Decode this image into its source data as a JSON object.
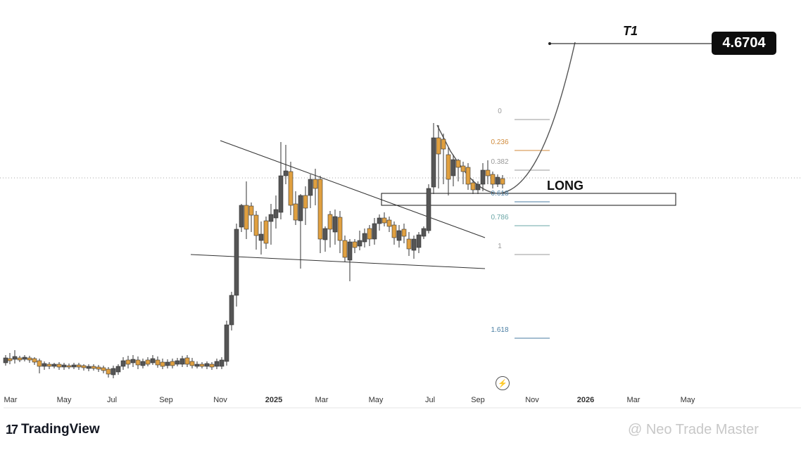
{
  "chart_data": {
    "type": "candlestick",
    "x_ticks": [
      {
        "label": "Mar",
        "bold": false
      },
      {
        "label": "May",
        "bold": false
      },
      {
        "label": "Jul",
        "bold": false
      },
      {
        "label": "Sep",
        "bold": false
      },
      {
        "label": "Nov",
        "bold": false
      },
      {
        "label": "2025",
        "bold": true
      },
      {
        "label": "Mar",
        "bold": false
      },
      {
        "label": "May",
        "bold": false
      },
      {
        "label": "Jul",
        "bold": false
      },
      {
        "label": "Sep",
        "bold": false
      },
      {
        "label": "Nov",
        "bold": false
      },
      {
        "label": "2026",
        "bold": true
      },
      {
        "label": "Mar",
        "bold": false
      },
      {
        "label": "May",
        "bold": false
      }
    ],
    "fib_levels": [
      {
        "label": "0",
        "color": "#999999"
      },
      {
        "label": "0.236",
        "color": "#d08a3a"
      },
      {
        "label": "0.382",
        "color": "#999999"
      },
      {
        "label": "0.618",
        "color": "#4a7ea3"
      },
      {
        "label": "0.786",
        "color": "#6aa6a6"
      },
      {
        "label": "1",
        "color": "#999999"
      },
      {
        "label": "1.618",
        "color": "#4a7ea3"
      }
    ],
    "annotations": {
      "target_label": "T1",
      "target_value": "4.6704",
      "zone_label": "LONG"
    },
    "colors": {
      "up": "#555555",
      "down": "#e0a040"
    }
  },
  "branding": {
    "logo_text": "TradingView",
    "logo_mark": "17",
    "watermark": "@ Neo Trade Master"
  },
  "icons": {
    "replay": "lightning-icon"
  }
}
